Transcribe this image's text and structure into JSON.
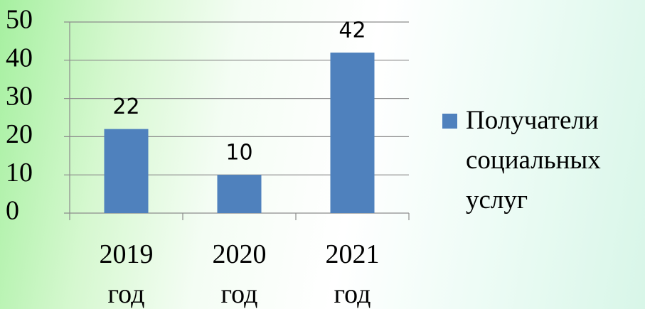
{
  "chart_data": {
    "type": "bar",
    "categories": [
      "2019 год",
      "2020 год",
      "2021 год"
    ],
    "series": [
      {
        "name": "Получатели социальных услуг",
        "color": "#4f81bd",
        "values": [
          22,
          10,
          42
        ]
      }
    ],
    "ylim": [
      0,
      50
    ],
    "yticks": [
      0,
      10,
      20,
      30,
      40,
      50
    ],
    "grid": true,
    "legend": "right"
  }
}
